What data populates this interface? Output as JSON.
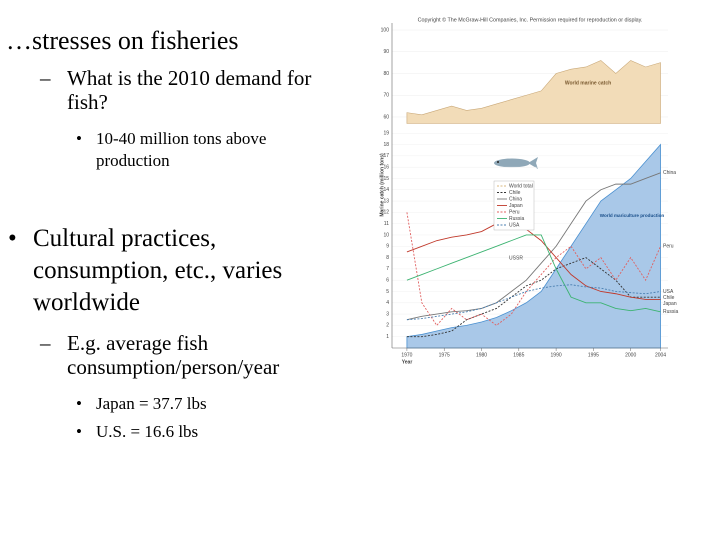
{
  "slide": {
    "title": "…stresses on fisheries",
    "bullets": [
      {
        "marker": "–",
        "text": "What is the 2010 demand for fish?"
      },
      {
        "marker": "•",
        "text": "10-40 million tons above production"
      },
      {
        "marker": "•",
        "text": "Cultural practices, consumption, etc., varies worldwide"
      },
      {
        "marker": "–",
        "text": "E.g. average fish consumption/person/year"
      },
      {
        "marker": "•",
        "text": "Japan = 37.7 lbs"
      },
      {
        "marker": "•",
        "text": "U.S. = 16.6 lbs"
      }
    ],
    "copyright": "Copyright © The McGraw-Hill Companies, Inc. Permission required for reproduction or display."
  },
  "chart_data": [
    {
      "type": "area",
      "annotation": "World marine catch",
      "x": [
        1970,
        1972,
        1974,
        1976,
        1978,
        1980,
        1982,
        1984,
        1986,
        1988,
        1990,
        1992,
        1994,
        1996,
        1998,
        2000,
        2002,
        2004
      ],
      "series": [
        {
          "name": "World total",
          "color": "#f2dcb8",
          "values": [
            62,
            61,
            63,
            65,
            63,
            64,
            66,
            68,
            70,
            72,
            80,
            82,
            83,
            86,
            80,
            86,
            83,
            85
          ]
        }
      ],
      "ylim": [
        57,
        103
      ],
      "yticks": [
        60,
        70,
        80,
        90,
        100
      ]
    },
    {
      "type": "line",
      "ylabel": "Marine catch (million tons)",
      "xlabel": "Year",
      "annotation": "USSR",
      "x": [
        1970,
        1972,
        1974,
        1976,
        1978,
        1980,
        1982,
        1984,
        1986,
        1988,
        1990,
        1992,
        1994,
        1996,
        1998,
        2000,
        2002,
        2004
      ],
      "area": {
        "name": "World mariculture production",
        "color": "#a9c8e8",
        "values": [
          1,
          1.2,
          1.5,
          1.8,
          2,
          2.3,
          2.7,
          3.3,
          4,
          5,
          7,
          9,
          11,
          13,
          14,
          15,
          16.5,
          18
        ]
      },
      "series": [
        {
          "name": "Chile",
          "color": "#333333",
          "dash": true,
          "values": [
            1,
            1,
            1.2,
            1.5,
            2.5,
            3,
            3.5,
            4.5,
            5.5,
            6,
            7,
            7.5,
            8,
            7,
            6,
            4.5,
            4.5,
            4.5
          ]
        },
        {
          "name": "China",
          "color": "#777777",
          "dash": false,
          "values": [
            2.5,
            2.8,
            3,
            3.2,
            3.3,
            3.5,
            4,
            5,
            6,
            7.5,
            9,
            11,
            13,
            14,
            14.5,
            14.5,
            15,
            15.5
          ]
        },
        {
          "name": "Japan",
          "color": "#c0392b",
          "dash": false,
          "values": [
            8.5,
            9,
            9.5,
            9.8,
            10,
            10.3,
            11,
            10.5,
            10.5,
            9.5,
            8,
            6.5,
            5.5,
            5,
            4.8,
            4.5,
            4.3,
            4.3
          ]
        },
        {
          "name": "Peru",
          "color": "#e06060",
          "dash": true,
          "values": [
            12,
            4,
            2,
            3.5,
            2.5,
            3,
            2,
            3,
            5,
            6.5,
            8,
            9,
            7,
            8,
            6,
            8,
            6,
            9
          ]
        },
        {
          "name": "Russia",
          "color": "#3cb371",
          "dash": false,
          "values": [
            6,
            6.5,
            7,
            7.5,
            8,
            8.5,
            9,
            9.5,
            10,
            10,
            7,
            4.5,
            4,
            4,
            3.5,
            3.3,
            3.5,
            3.2
          ]
        },
        {
          "name": "USA",
          "color": "#4a7fb0",
          "dash": true,
          "values": [
            2.5,
            2.6,
            2.8,
            3,
            3.2,
            3.5,
            4,
            4.5,
            5,
            5.3,
            5.5,
            5.6,
            5.4,
            5.3,
            5,
            4.9,
            4.8,
            5
          ]
        }
      ],
      "xlim": [
        1968,
        2005
      ],
      "xticks": [
        1970,
        1975,
        1980,
        1985,
        1990,
        1995,
        2000,
        2004
      ],
      "ylim": [
        0,
        19.5
      ],
      "yticks": [
        1,
        2,
        3,
        4,
        5,
        6,
        7,
        8,
        9,
        10,
        11,
        12,
        13,
        14,
        15,
        16,
        17,
        18,
        19
      ]
    }
  ]
}
